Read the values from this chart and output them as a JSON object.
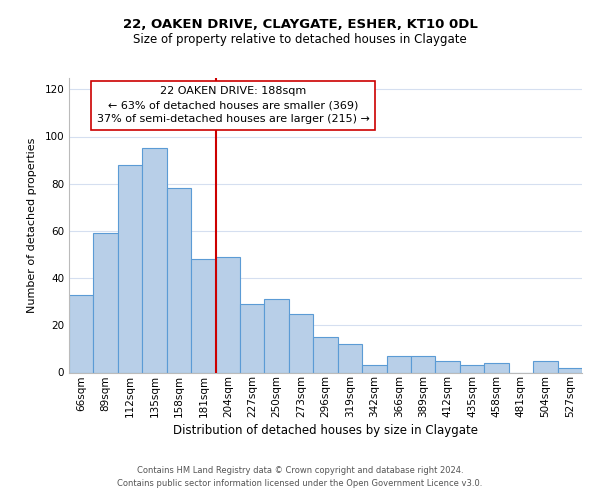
{
  "title": "22, OAKEN DRIVE, CLAYGATE, ESHER, KT10 0DL",
  "subtitle": "Size of property relative to detached houses in Claygate",
  "xlabel": "Distribution of detached houses by size in Claygate",
  "ylabel": "Number of detached properties",
  "bar_labels": [
    "66sqm",
    "89sqm",
    "112sqm",
    "135sqm",
    "158sqm",
    "181sqm",
    "204sqm",
    "227sqm",
    "250sqm",
    "273sqm",
    "296sqm",
    "319sqm",
    "342sqm",
    "366sqm",
    "389sqm",
    "412sqm",
    "435sqm",
    "458sqm",
    "481sqm",
    "504sqm",
    "527sqm"
  ],
  "bar_values": [
    33,
    59,
    88,
    95,
    78,
    48,
    49,
    29,
    31,
    25,
    15,
    12,
    3,
    7,
    7,
    5,
    3,
    4,
    0,
    5,
    2
  ],
  "bar_color": "#b8cfe8",
  "bar_edge_color": "#5b9bd5",
  "vline_color": "#cc0000",
  "vline_x_idx": 5,
  "annotation_text": "22 OAKEN DRIVE: 188sqm\n← 63% of detached houses are smaller (369)\n37% of semi-detached houses are larger (215) →",
  "annotation_box_color": "#ffffff",
  "annotation_box_edge_color": "#cc0000",
  "ylim": [
    0,
    125
  ],
  "yticks": [
    0,
    20,
    40,
    60,
    80,
    100,
    120
  ],
  "footer_line1": "Contains HM Land Registry data © Crown copyright and database right 2024.",
  "footer_line2": "Contains public sector information licensed under the Open Government Licence v3.0.",
  "background_color": "#ffffff",
  "grid_color": "#d5dff0",
  "title_fontsize": 9.5,
  "subtitle_fontsize": 8.5,
  "xlabel_fontsize": 8.5,
  "ylabel_fontsize": 8.0,
  "tick_fontsize": 7.5,
  "footer_fontsize": 6.0,
  "annot_fontsize": 8.0
}
